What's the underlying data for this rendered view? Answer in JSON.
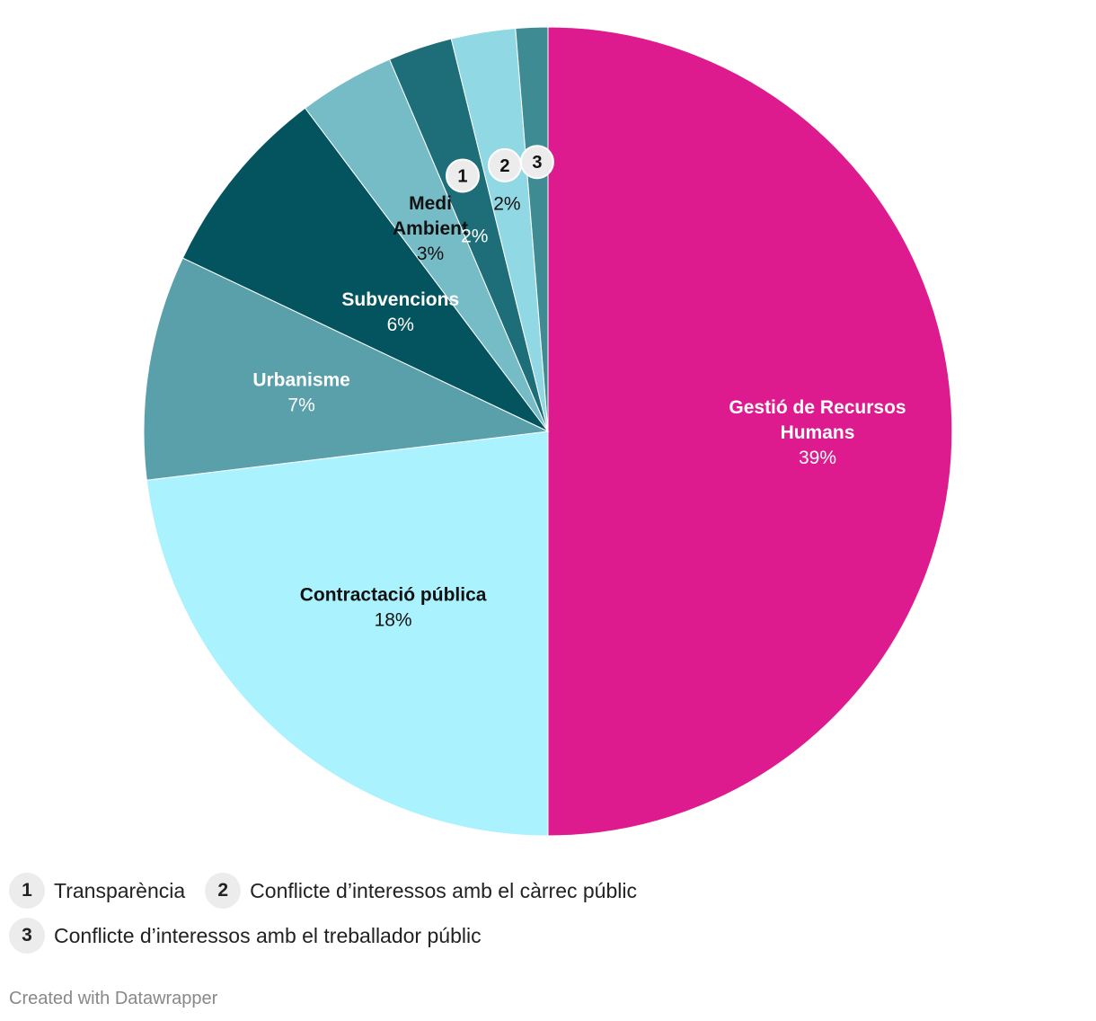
{
  "chart_data": {
    "type": "pie",
    "slices": [
      {
        "label": "Gestió de Recursos Humans",
        "display_lines": [
          "Gestió de Recursos",
          "Humans"
        ],
        "value": 39,
        "value_label": "39%",
        "color": "#de1a8f",
        "label_color": "#ffffff"
      },
      {
        "label": "Contractació pública",
        "display_lines": [
          "Contractació pública"
        ],
        "value": 18,
        "value_label": "18%",
        "color": "#aaf2fe",
        "label_color": "#111111"
      },
      {
        "label": "Urbanisme",
        "display_lines": [
          "Urbanisme"
        ],
        "value": 7,
        "value_label": "7%",
        "color": "#5aa0aa",
        "label_color": "#ffffff"
      },
      {
        "label": "Subvencions",
        "display_lines": [
          "Subvencions"
        ],
        "value": 6,
        "value_label": "6%",
        "color": "#03545e",
        "label_color": "#ffffff"
      },
      {
        "label": "Medi Ambient",
        "display_lines": [
          "Medi",
          "Ambient"
        ],
        "value": 3,
        "value_label": "3%",
        "color": "#76bcc6",
        "label_color": "#111111"
      },
      {
        "label": "Transparència",
        "display_lines": [],
        "value": 2,
        "value_label": "2%",
        "color": "#1d6e78",
        "label_color": "#ffffff",
        "badge": "1"
      },
      {
        "label": "Conflicte d’interessos amb el càrrec públic",
        "display_lines": [],
        "value": 2,
        "value_label": "2%",
        "color": "#90d8e3",
        "label_color": "#111111",
        "badge": "2"
      },
      {
        "label": "Conflicte d’interessos amb el treballador públic",
        "display_lines": [],
        "value": 1,
        "value_label": "",
        "color": "#3e8b94",
        "label_color": "#ffffff",
        "badge": "3"
      }
    ]
  },
  "legend": [
    {
      "badge": "1",
      "label": "Transparència"
    },
    {
      "badge": "2",
      "label": "Conflicte d’interessos amb el càrrec públic"
    },
    {
      "badge": "3",
      "label": "Conflicte d’interessos amb el treballador públic"
    }
  ],
  "credit": "Created with Datawrapper"
}
